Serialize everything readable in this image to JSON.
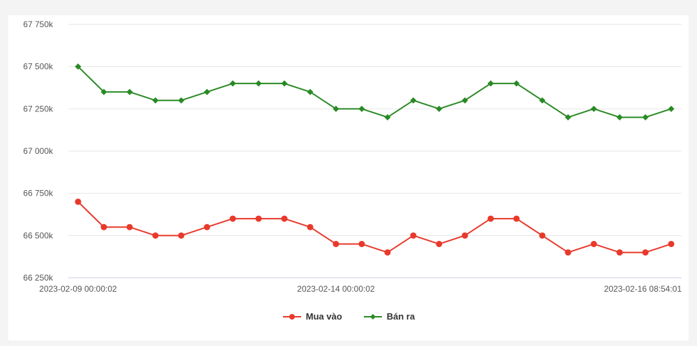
{
  "chart_data": {
    "type": "line",
    "title": "",
    "xlabel": "",
    "ylabel": "",
    "ylim": [
      66250,
      67750
    ],
    "yticks": [
      "67 750k",
      "67 500k",
      "67 250k",
      "67 000k",
      "66 750k",
      "66 500k",
      "66 250k"
    ],
    "ytick_values": [
      67750,
      67500,
      67250,
      67000,
      66750,
      66500,
      66250
    ],
    "xtick_labels": [
      "2023-02-09 00:00:02",
      "2023-02-14 00:00:02",
      "2023-02-16 08:54:01"
    ],
    "xtick_indices": [
      0,
      10,
      23
    ],
    "point_count": 24,
    "grid": "horizontal",
    "legend": "bottom-center",
    "series": [
      {
        "name": "Mua vào",
        "color": "#e8392b",
        "marker": "circle",
        "values": [
          66700,
          66550,
          66550,
          66500,
          66500,
          66550,
          66600,
          66600,
          66600,
          66550,
          66450,
          66450,
          66400,
          66500,
          66450,
          66500,
          66600,
          66600,
          66500,
          66400,
          66450,
          66400,
          66400,
          66450
        ]
      },
      {
        "name": "Bán ra",
        "color": "#2a8a25",
        "marker": "diamond",
        "values": [
          67500,
          67350,
          67350,
          67300,
          67300,
          67350,
          67400,
          67400,
          67400,
          67350,
          67250,
          67250,
          67200,
          67300,
          67250,
          67300,
          67400,
          67400,
          67300,
          67200,
          67250,
          67200,
          67200,
          67250
        ]
      }
    ]
  }
}
